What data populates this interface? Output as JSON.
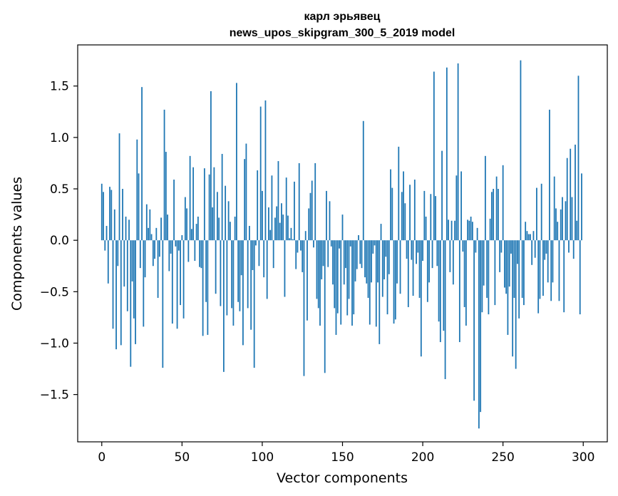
{
  "chart_data": {
    "type": "bar",
    "title": "карл эрьявец",
    "subtitle": "news_upos_skipgram_300_5_2019 model",
    "xlabel": "Vector components",
    "ylabel": "Components values",
    "xlim": [
      -15,
      315
    ],
    "ylim": [
      -1.96,
      1.9
    ],
    "xticks": [
      0,
      50,
      100,
      150,
      200,
      250,
      300
    ],
    "xtick_labels": [
      "0",
      "50",
      "100",
      "150",
      "200",
      "250",
      "300"
    ],
    "yticks": [
      -1.5,
      -1.0,
      -0.5,
      0.0,
      0.5,
      1.0,
      1.5
    ],
    "ytick_labels": [
      "−1.5",
      "−1.0",
      "−0.5",
      "0.0",
      "0.5",
      "1.0",
      "1.5"
    ],
    "grid": false,
    "bar_color": "#1f77b4",
    "x_start": 0,
    "values": [
      0.55,
      0.47,
      -0.1,
      0.14,
      -0.42,
      0.52,
      0.49,
      -0.86,
      0.3,
      -1.06,
      -0.25,
      1.04,
      -1.02,
      0.5,
      -0.45,
      0.23,
      -0.69,
      0.2,
      -1.23,
      -0.4,
      -0.76,
      -1.01,
      0.98,
      0.65,
      -0.27,
      1.49,
      -0.84,
      -0.36,
      0.35,
      0.12,
      0.3,
      0.06,
      -0.25,
      -0.18,
      0.12,
      -0.56,
      -0.16,
      0.22,
      -1.24,
      1.27,
      0.86,
      0.25,
      -0.3,
      -0.13,
      -0.81,
      0.59,
      -0.06,
      -0.86,
      -0.1,
      -0.63,
      0.05,
      -0.76,
      0.42,
      0.31,
      -0.21,
      0.82,
      0.11,
      0.71,
      -0.2,
      0.16,
      0.23,
      -0.26,
      -0.27,
      -0.93,
      0.7,
      -0.6,
      -0.92,
      0.64,
      1.45,
      0.32,
      0.71,
      -0.52,
      0.47,
      0.22,
      -0.64,
      0.84,
      -1.28,
      0.53,
      -0.73,
      0.38,
      0.18,
      -0.66,
      -0.83,
      0.23,
      1.53,
      -0.6,
      -0.69,
      -0.34,
      -1.02,
      0.79,
      0.94,
      -0.66,
      0.14,
      -0.87,
      -0.29,
      -1.24,
      -0.05,
      0.68,
      -0.25,
      1.3,
      0.48,
      -0.36,
      1.36,
      -0.57,
      0.32,
      0.1,
      0.63,
      -0.27,
      0.22,
      0.33,
      0.77,
      0.17,
      0.36,
      0.25,
      -0.55,
      0.61,
      0.24,
      0.02,
      0.12,
      0.01,
      0.57,
      -0.28,
      -0.12,
      0.75,
      -0.1,
      -0.31,
      -1.32,
      0.09,
      -0.78,
      0.31,
      0.46,
      0.58,
      -0.07,
      0.75,
      -0.57,
      -0.66,
      -0.83,
      -0.38,
      -0.25,
      -1.29,
      0.48,
      -0.26,
      0.38,
      -0.06,
      -0.43,
      -0.66,
      -0.92,
      -0.71,
      -0.08,
      -0.82,
      0.25,
      -0.43,
      -0.27,
      -0.73,
      -0.57,
      -0.06,
      -0.83,
      -0.72,
      -0.4,
      -0.28,
      0.05,
      -0.23,
      -0.27,
      1.16,
      -0.36,
      -0.42,
      -0.56,
      -0.82,
      -0.41,
      -0.13,
      -0.05,
      -0.84,
      -0.41,
      -1.01,
      0.16,
      -0.55,
      -0.38,
      -0.16,
      -0.72,
      -0.33,
      0.69,
      0.51,
      -0.81,
      -0.77,
      -0.42,
      0.91,
      -0.52,
      0.47,
      0.67,
      0.36,
      -0.18,
      -0.65,
      0.54,
      -0.19,
      -0.54,
      0.59,
      -0.23,
      -0.12,
      -0.56,
      -1.13,
      -0.2,
      0.48,
      0.23,
      -0.6,
      -0.41,
      0.45,
      -0.27,
      1.64,
      0.43,
      -0.25,
      -0.79,
      -0.99,
      0.87,
      -0.88,
      -1.35,
      1.68,
      0.2,
      -0.31,
      0.19,
      -0.43,
      0.19,
      0.63,
      1.72,
      -0.99,
      0.67,
      -0.11,
      -0.65,
      -0.83,
      0.2,
      0.19,
      0.23,
      0.18,
      -1.56,
      -0.12,
      0.12,
      -1.83,
      -1.67,
      -0.7,
      -0.44,
      0.82,
      -0.56,
      -0.72,
      0.21,
      0.47,
      0.5,
      -0.63,
      0.62,
      0.5,
      -0.31,
      -0.12,
      0.73,
      -0.46,
      -0.52,
      -0.92,
      -0.45,
      -0.13,
      -1.13,
      -0.56,
      -1.25,
      -0.23,
      -0.76,
      1.75,
      -0.56,
      -0.63,
      0.18,
      0.09,
      0.06,
      0.06,
      -0.24,
      0.09,
      -0.17,
      0.51,
      -0.71,
      -0.57,
      0.55,
      -0.54,
      -0.19,
      -0.13,
      -0.41,
      1.27,
      -0.59,
      -0.41,
      0.62,
      0.31,
      0.18,
      -0.59,
      0.3,
      0.42,
      -0.7,
      0.38,
      0.8,
      -0.12,
      0.89,
      0.42,
      -0.18,
      0.93,
      0.19,
      1.6,
      -0.72,
      0.65
    ]
  }
}
